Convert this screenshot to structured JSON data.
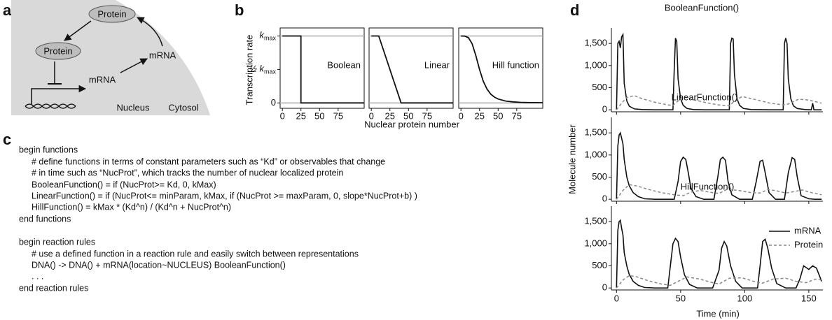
{
  "panel_labels": [
    "a",
    "b",
    "c",
    "d"
  ],
  "panel_a": {
    "protein_cytosol": "Protein",
    "protein_nucleus": "Protein",
    "mrna_cytosol": "mRNA",
    "mrna_nucleus": "mRNA",
    "nucleus": "Nucleus",
    "cytosol": "Cytosol"
  },
  "panel_b": {
    "ylabel": "Transcription rate",
    "xlabel": "Nuclear protein number",
    "ylim": [
      -0.08,
      1.12
    ],
    "yticks": [
      {
        "value": 1,
        "label": "k",
        "label_sub": "max"
      },
      {
        "value": 0.5,
        "label": "½ k",
        "label_sub": "max"
      },
      0
    ],
    "line_color": "#111",
    "ref_color": "#aaa",
    "charts": [
      {
        "type": "line",
        "title": "Boolean",
        "xlim": [
          -3,
          110
        ],
        "xticks": [
          0,
          25,
          50,
          75
        ],
        "x": [
          0,
          25,
          25,
          110
        ],
        "values": [
          1,
          1,
          0,
          0
        ]
      },
      {
        "type": "line",
        "title": "Linear",
        "xlim": [
          -3,
          110
        ],
        "xticks": [
          0,
          25,
          50,
          75
        ],
        "x": [
          0,
          10,
          40,
          110
        ],
        "values": [
          1,
          1,
          0,
          0
        ]
      },
      {
        "type": "line",
        "title": "Hill function",
        "xlim": [
          -3,
          110
        ],
        "xticks": [
          0,
          25,
          50,
          75
        ],
        "x": [
          0,
          5,
          10,
          15,
          20,
          25,
          30,
          35,
          40,
          45,
          50,
          60,
          70,
          80,
          90,
          100,
          110
        ],
        "values": [
          1,
          0.998,
          0.975,
          0.885,
          0.709,
          0.5,
          0.325,
          0.207,
          0.132,
          0.087,
          0.059,
          0.029,
          0.016,
          0.009,
          0.006,
          0.004,
          0.003
        ]
      }
    ]
  },
  "panel_c": {
    "lines": [
      "begin functions",
      "# define functions in terms of constant parameters such as “Kd” or observables that change",
      "# in time such as “NucProt”, which tracks the number of nuclear localized protein",
      "BooleanFunction() = if (NucProt>= Kd, 0, kMax)",
      "LinearFunction() = if (NucProt<= minParam, kMax, if (NucProt >= maxParam, 0, slope*NucProt+b) )",
      "HillFunction() = kMax * (Kd^n) / (Kd^n + NucProt^n)",
      "end functions",
      "begin reaction rules",
      "# use a defined function in a reaction rule and easily switch between representations",
      "DNA() -> DNA() + mRNA(location~NUCLEUS) BooleanFunction()",
      ". . .",
      "end reaction rules"
    ]
  },
  "panel_d": {
    "ylabel": "Molecule number",
    "xlabel": "Time (min)",
    "xlim": [
      -4,
      161
    ],
    "xticks": [
      0,
      50,
      100,
      150
    ],
    "ylim": [
      -45,
      1850
    ],
    "yticks": [
      0,
      500,
      {
        "value": 1000,
        "label": "1,000"
      },
      {
        "value": 1500,
        "label": "1,500"
      }
    ],
    "legend": [
      {
        "name": "mRNA",
        "color": "#111",
        "dashed": false
      },
      {
        "name": "Protein",
        "color": "#888",
        "dashed": true
      }
    ],
    "charts": [
      {
        "type": "line",
        "title": "BooleanFunction()",
        "series": [
          {
            "x": [
              0,
              1,
              2,
              3,
              4,
              5,
              6,
              8,
              10,
              14,
              20,
              30,
              44,
              45,
              46,
              47,
              48,
              50,
              52,
              55,
              60,
              70,
              88,
              89,
              90,
              91,
              92,
              94,
              96,
              99,
              105,
              120,
              130,
              131,
              132,
              133,
              134,
              136,
              138,
              141,
              147,
              152,
              153,
              154,
              160
            ],
            "values": [
              0,
              1500,
              1550,
              1400,
              1650,
              1700,
              600,
              200,
              80,
              20,
              5,
              0,
              0,
              900,
              1620,
              1550,
              700,
              250,
              100,
              30,
              5,
              0,
              0,
              1500,
              1620,
              1600,
              800,
              250,
              100,
              30,
              5,
              0,
              0,
              1500,
              1620,
              1500,
              700,
              250,
              90,
              30,
              5,
              0,
              150,
              0,
              0
            ]
          },
          {
            "x": [
              0,
              4,
              8,
              14,
              20,
              30,
              40,
              44,
              48,
              52,
              60,
              70,
              80,
              88,
              92,
              98,
              110,
              120,
              130,
              134,
              142,
              150,
              160
            ],
            "values": [
              0,
              150,
              280,
              320,
              250,
              170,
              110,
              100,
              200,
              300,
              230,
              160,
              110,
              90,
              200,
              300,
              220,
              150,
              110,
              130,
              240,
              220,
              150
            ]
          }
        ]
      },
      {
        "type": "line",
        "title": "LinearFunction()",
        "series": [
          {
            "x": [
              0,
              1,
              2,
              3,
              4,
              5,
              6,
              8,
              10,
              13,
              17,
              22,
              30,
              45,
              48,
              50,
              52,
              54,
              56,
              58,
              62,
              68,
              76,
              79,
              81,
              83,
              85,
              87,
              90,
              96,
              106,
              109,
              112,
              114,
              116,
              119,
              124,
              131,
              134,
              137,
              139,
              141,
              144,
              150,
              155,
              160
            ],
            "values": [
              0,
              1200,
              1450,
              1500,
              1380,
              1250,
              900,
              500,
              300,
              150,
              60,
              10,
              0,
              0,
              400,
              850,
              950,
              900,
              600,
              250,
              60,
              0,
              0,
              500,
              900,
              950,
              880,
              400,
              100,
              0,
              0,
              400,
              860,
              880,
              600,
              150,
              0,
              0,
              600,
              940,
              900,
              500,
              80,
              10,
              0,
              0
            ]
          },
          {
            "x": [
              0,
              5,
              10,
              16,
              25,
              35,
              45,
              52,
              58,
              65,
              75,
              80,
              86,
              95,
              105,
              112,
              118,
              125,
              132,
              138,
              145,
              152,
              160
            ],
            "values": [
              0,
              200,
              330,
              300,
              220,
              150,
              100,
              80,
              160,
              200,
              150,
              130,
              220,
              200,
              150,
              140,
              220,
              190,
              140,
              170,
              210,
              150,
              100
            ]
          }
        ]
      },
      {
        "type": "line",
        "title": "HillFunction()",
        "series": [
          {
            "x": [
              0,
              1,
              2,
              3,
              4,
              5,
              6,
              8,
              10,
              13,
              17,
              22,
              30,
              40,
              42,
              44,
              46,
              48,
              50,
              53,
              57,
              63,
              75,
              80,
              82,
              84,
              86,
              89,
              93,
              98,
              110,
              112,
              114,
              116,
              118,
              121,
              125,
              132,
              140,
              143,
              146,
              150,
              153,
              156,
              158,
              160
            ],
            "values": [
              0,
              1300,
              1500,
              1530,
              1350,
              1200,
              800,
              500,
              300,
              150,
              60,
              10,
              0,
              0,
              500,
              1000,
              1120,
              1050,
              700,
              300,
              80,
              0,
              0,
              400,
              900,
              1050,
              950,
              500,
              150,
              0,
              0,
              500,
              1050,
              1100,
              900,
              450,
              100,
              0,
              0,
              200,
              500,
              420,
              500,
              450,
              300,
              150
            ]
          },
          {
            "x": [
              0,
              5,
              10,
              16,
              25,
              35,
              42,
              48,
              55,
              65,
              75,
              80,
              88,
              98,
              108,
              114,
              122,
              132,
              140,
              148,
              155,
              160
            ],
            "values": [
              0,
              180,
              280,
              250,
              160,
              90,
              60,
              150,
              250,
              200,
              120,
              90,
              220,
              230,
              140,
              110,
              200,
              220,
              150,
              120,
              200,
              180
            ]
          }
        ]
      }
    ]
  }
}
